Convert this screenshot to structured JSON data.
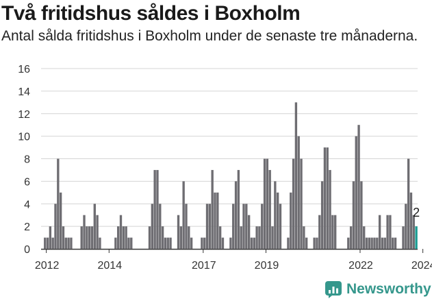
{
  "header": {
    "title": "Två fritidshus såldes i Boxholm",
    "subtitle": "Antal sålda fritidshus i Boxholm under de senaste tre månaderna."
  },
  "brand": {
    "name": "Newsworthy",
    "icon": "newsworthy-logo-icon",
    "color": "#35978c"
  },
  "colors": {
    "bar": "#6e6d72",
    "highlight": "#1a9c92",
    "grid": "#d4d4d4",
    "axis": "#333333"
  },
  "chart_data": {
    "type": "bar",
    "start": "2011-11",
    "frequency": "monthly",
    "x_ticks": [
      "2012",
      "2014",
      "2017",
      "2019",
      "2022",
      "2024"
    ],
    "y_ticks": [
      "0",
      "2",
      "4",
      "6",
      "8",
      "10",
      "12",
      "14",
      "16"
    ],
    "ylim": [
      0,
      16
    ],
    "values": [
      0,
      1,
      1,
      2,
      1,
      4,
      8,
      5,
      2,
      1,
      1,
      1,
      0,
      0,
      0,
      2,
      3,
      2,
      2,
      2,
      4,
      3,
      1,
      0,
      0,
      0,
      0,
      0,
      1,
      2,
      3,
      2,
      2,
      1,
      1,
      0,
      0,
      0,
      0,
      0,
      0,
      2,
      4,
      7,
      7,
      4,
      2,
      1,
      1,
      1,
      0,
      0,
      3,
      2,
      6,
      4,
      2,
      1,
      0,
      0,
      0,
      1,
      1,
      4,
      4,
      7,
      5,
      5,
      2,
      1,
      0,
      0,
      1,
      4,
      6,
      7,
      2,
      4,
      4,
      3,
      1,
      1,
      2,
      2,
      4,
      8,
      8,
      7,
      2,
      6,
      5,
      4,
      0,
      0,
      1,
      5,
      8,
      13,
      10,
      8,
      2,
      1,
      0,
      0,
      1,
      1,
      3,
      6,
      9,
      9,
      7,
      3,
      3,
      0,
      0,
      0,
      0,
      1,
      2,
      6,
      10,
      11,
      6,
      2,
      1,
      1,
      1,
      1,
      1,
      3,
      1,
      1,
      3,
      3,
      1,
      1,
      0,
      0,
      2,
      4,
      8,
      5,
      3,
      2
    ],
    "annotation": {
      "text": "2",
      "value": 2
    }
  }
}
